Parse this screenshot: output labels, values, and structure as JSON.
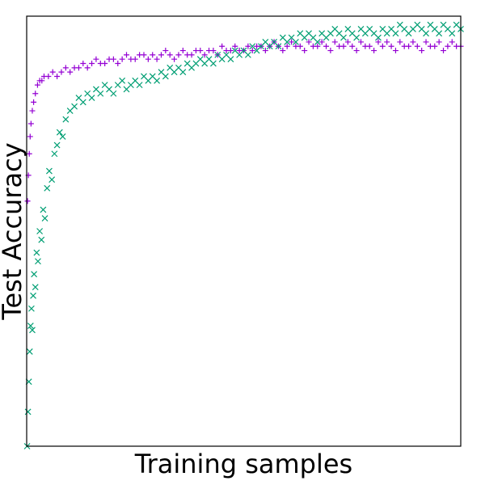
{
  "chart_data": {
    "type": "scatter",
    "title": "",
    "xlabel": "Training samples",
    "ylabel": "Test Accuracy",
    "xlim": [
      0,
      1
    ],
    "ylim": [
      0,
      1
    ],
    "grid": false,
    "legend": "none",
    "xticks": [],
    "yticks": [],
    "series": [
      {
        "marker": "plus",
        "color": "#9400d3",
        "x": [
          0.002,
          0.004,
          0.006,
          0.008,
          0.01,
          0.013,
          0.016,
          0.02,
          0.025,
          0.03,
          0.035,
          0.04,
          0.05,
          0.06,
          0.07,
          0.08,
          0.09,
          0.1,
          0.11,
          0.12,
          0.13,
          0.14,
          0.15,
          0.16,
          0.17,
          0.18,
          0.19,
          0.2,
          0.21,
          0.22,
          0.23,
          0.24,
          0.25,
          0.26,
          0.27,
          0.28,
          0.29,
          0.3,
          0.31,
          0.32,
          0.33,
          0.34,
          0.35,
          0.36,
          0.37,
          0.38,
          0.39,
          0.4,
          0.41,
          0.42,
          0.43,
          0.44,
          0.45,
          0.46,
          0.47,
          0.48,
          0.49,
          0.5,
          0.51,
          0.52,
          0.53,
          0.54,
          0.55,
          0.56,
          0.57,
          0.58,
          0.59,
          0.6,
          0.61,
          0.62,
          0.63,
          0.64,
          0.65,
          0.66,
          0.67,
          0.68,
          0.69,
          0.7,
          0.71,
          0.72,
          0.73,
          0.74,
          0.75,
          0.76,
          0.77,
          0.78,
          0.79,
          0.8,
          0.81,
          0.82,
          0.83,
          0.84,
          0.85,
          0.86,
          0.87,
          0.88,
          0.89,
          0.9,
          0.91,
          0.92,
          0.93,
          0.94,
          0.95,
          0.96,
          0.97,
          0.98,
          0.99,
          1.0
        ],
        "y": [
          0.57,
          0.63,
          0.68,
          0.72,
          0.75,
          0.78,
          0.8,
          0.82,
          0.84,
          0.85,
          0.85,
          0.86,
          0.86,
          0.87,
          0.86,
          0.87,
          0.88,
          0.87,
          0.88,
          0.88,
          0.89,
          0.88,
          0.89,
          0.9,
          0.89,
          0.89,
          0.9,
          0.9,
          0.89,
          0.9,
          0.91,
          0.9,
          0.9,
          0.91,
          0.91,
          0.9,
          0.91,
          0.9,
          0.91,
          0.92,
          0.91,
          0.9,
          0.91,
          0.92,
          0.91,
          0.91,
          0.92,
          0.92,
          0.91,
          0.92,
          0.92,
          0.91,
          0.93,
          0.92,
          0.92,
          0.93,
          0.92,
          0.92,
          0.93,
          0.92,
          0.93,
          0.93,
          0.92,
          0.93,
          0.94,
          0.93,
          0.92,
          0.93,
          0.94,
          0.93,
          0.93,
          0.92,
          0.94,
          0.93,
          0.93,
          0.94,
          0.93,
          0.92,
          0.94,
          0.93,
          0.93,
          0.94,
          0.93,
          0.92,
          0.94,
          0.93,
          0.93,
          0.92,
          0.94,
          0.93,
          0.94,
          0.93,
          0.92,
          0.94,
          0.93,
          0.93,
          0.94,
          0.93,
          0.92,
          0.94,
          0.93,
          0.93,
          0.94,
          0.92,
          0.93,
          0.94,
          0.93,
          0.93
        ]
      },
      {
        "marker": "x",
        "color": "#009e73",
        "x": [
          0.001,
          0.003,
          0.005,
          0.007,
          0.009,
          0.011,
          0.013,
          0.015,
          0.017,
          0.02,
          0.023,
          0.026,
          0.03,
          0.034,
          0.038,
          0.042,
          0.047,
          0.052,
          0.058,
          0.064,
          0.07,
          0.076,
          0.083,
          0.09,
          0.1,
          0.11,
          0.12,
          0.13,
          0.14,
          0.15,
          0.16,
          0.17,
          0.18,
          0.19,
          0.2,
          0.21,
          0.22,
          0.23,
          0.24,
          0.25,
          0.26,
          0.27,
          0.28,
          0.29,
          0.3,
          0.31,
          0.32,
          0.33,
          0.34,
          0.35,
          0.36,
          0.37,
          0.38,
          0.39,
          0.4,
          0.41,
          0.42,
          0.43,
          0.44,
          0.45,
          0.46,
          0.47,
          0.48,
          0.49,
          0.5,
          0.51,
          0.52,
          0.53,
          0.54,
          0.55,
          0.56,
          0.57,
          0.58,
          0.59,
          0.6,
          0.61,
          0.62,
          0.63,
          0.64,
          0.65,
          0.66,
          0.67,
          0.68,
          0.69,
          0.7,
          0.71,
          0.72,
          0.73,
          0.74,
          0.75,
          0.76,
          0.77,
          0.78,
          0.79,
          0.8,
          0.81,
          0.82,
          0.83,
          0.84,
          0.85,
          0.86,
          0.87,
          0.88,
          0.89,
          0.9,
          0.91,
          0.92,
          0.93,
          0.94,
          0.95,
          0.96,
          0.97,
          0.98,
          0.99,
          1.0
        ],
        "y": [
          0.0,
          0.08,
          0.15,
          0.22,
          0.28,
          0.32,
          0.27,
          0.35,
          0.4,
          0.37,
          0.45,
          0.43,
          0.5,
          0.48,
          0.55,
          0.53,
          0.6,
          0.64,
          0.62,
          0.68,
          0.7,
          0.73,
          0.72,
          0.76,
          0.78,
          0.79,
          0.81,
          0.8,
          0.82,
          0.81,
          0.83,
          0.82,
          0.84,
          0.83,
          0.82,
          0.84,
          0.85,
          0.83,
          0.84,
          0.85,
          0.84,
          0.86,
          0.85,
          0.86,
          0.85,
          0.87,
          0.86,
          0.88,
          0.87,
          0.88,
          0.87,
          0.89,
          0.88,
          0.89,
          0.9,
          0.89,
          0.9,
          0.89,
          0.91,
          0.9,
          0.91,
          0.9,
          0.92,
          0.91,
          0.92,
          0.91,
          0.93,
          0.92,
          0.93,
          0.94,
          0.93,
          0.94,
          0.93,
          0.95,
          0.94,
          0.95,
          0.94,
          0.96,
          0.95,
          0.96,
          0.95,
          0.94,
          0.96,
          0.95,
          0.96,
          0.97,
          0.96,
          0.95,
          0.97,
          0.96,
          0.95,
          0.97,
          0.96,
          0.97,
          0.96,
          0.95,
          0.97,
          0.96,
          0.97,
          0.96,
          0.98,
          0.97,
          0.96,
          0.97,
          0.98,
          0.97,
          0.96,
          0.98,
          0.97,
          0.96,
          0.98,
          0.97,
          0.96,
          0.98,
          0.97
        ]
      }
    ]
  }
}
